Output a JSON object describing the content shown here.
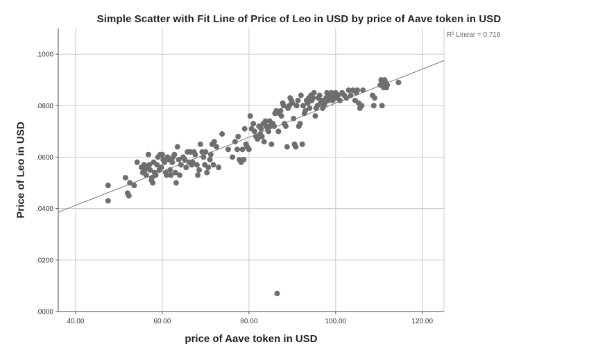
{
  "chart_data": {
    "type": "scatter",
    "title": "Simple Scatter with Fit Line of Price of Leo in USD by price of Aave token in USD",
    "xlabel": "price of Aave token in USD",
    "ylabel": "Price of Leo in USD",
    "xlim": [
      36,
      125
    ],
    "ylim": [
      0,
      0.11
    ],
    "x_ticks": [
      40,
      60,
      80,
      100,
      120
    ],
    "x_tick_labels": [
      "40.00",
      "60.00",
      "80.00",
      "100.00",
      "120.00"
    ],
    "y_ticks": [
      0,
      0.02,
      0.04,
      0.06,
      0.08,
      0.1
    ],
    "y_tick_labels": [
      ".0000",
      ".0200",
      ".0400",
      ".0600",
      ".0800",
      ".1000"
    ],
    "grid": true,
    "fit_line": {
      "label": "R² Linear = 0.716",
      "x": [
        36,
        125
      ],
      "y": [
        0.0386,
        0.0975
      ]
    },
    "marker_color": "#6e6e6e",
    "series": [
      {
        "points": [
          [
            47.5,
            0.049
          ],
          [
            47.5,
            0.043
          ],
          [
            51.5,
            0.052
          ],
          [
            52.0,
            0.046
          ],
          [
            52.3,
            0.045
          ],
          [
            52.5,
            0.05
          ],
          [
            53.5,
            0.049
          ],
          [
            54.2,
            0.058
          ],
          [
            55.2,
            0.056
          ],
          [
            55.5,
            0.054
          ],
          [
            55.8,
            0.057
          ],
          [
            56.0,
            0.055
          ],
          [
            56.3,
            0.053
          ],
          [
            56.5,
            0.056
          ],
          [
            56.8,
            0.061
          ],
          [
            57.0,
            0.057
          ],
          [
            57.2,
            0.055
          ],
          [
            57.5,
            0.051
          ],
          [
            57.6,
            0.052
          ],
          [
            57.8,
            0.05
          ],
          [
            58.0,
            0.058
          ],
          [
            58.2,
            0.054
          ],
          [
            58.5,
            0.053
          ],
          [
            58.8,
            0.057
          ],
          [
            59.0,
            0.06
          ],
          [
            59.3,
            0.055
          ],
          [
            59.5,
            0.061
          ],
          [
            59.8,
            0.056
          ],
          [
            60.0,
            0.061
          ],
          [
            60.2,
            0.059
          ],
          [
            60.5,
            0.058
          ],
          [
            60.8,
            0.054
          ],
          [
            61.0,
            0.053
          ],
          [
            61.2,
            0.06
          ],
          [
            61.5,
            0.059
          ],
          [
            61.8,
            0.055
          ],
          [
            62.0,
            0.053
          ],
          [
            62.3,
            0.058
          ],
          [
            62.5,
            0.06
          ],
          [
            62.8,
            0.061
          ],
          [
            63.0,
            0.054
          ],
          [
            63.2,
            0.05
          ],
          [
            63.5,
            0.064
          ],
          [
            63.8,
            0.059
          ],
          [
            64.0,
            0.053
          ],
          [
            64.3,
            0.057
          ],
          [
            64.8,
            0.06
          ],
          [
            65.2,
            0.059
          ],
          [
            65.5,
            0.056
          ],
          [
            65.8,
            0.062
          ],
          [
            66.2,
            0.058
          ],
          [
            66.5,
            0.062
          ],
          [
            66.8,
            0.057
          ],
          [
            67.0,
            0.058
          ],
          [
            67.3,
            0.062
          ],
          [
            67.6,
            0.061
          ],
          [
            68.0,
            0.057
          ],
          [
            68.2,
            0.053
          ],
          [
            68.5,
            0.055
          ],
          [
            68.8,
            0.065
          ],
          [
            69.2,
            0.062
          ],
          [
            69.5,
            0.06
          ],
          [
            69.8,
            0.057
          ],
          [
            70.0,
            0.062
          ],
          [
            70.3,
            0.054
          ],
          [
            70.6,
            0.056
          ],
          [
            71.0,
            0.059
          ],
          [
            71.2,
            0.061
          ],
          [
            71.5,
            0.065
          ],
          [
            71.8,
            0.057
          ],
          [
            72.0,
            0.066
          ],
          [
            72.5,
            0.064
          ],
          [
            73.0,
            0.056
          ],
          [
            73.8,
            0.069
          ],
          [
            75.2,
            0.063
          ],
          [
            76.2,
            0.06
          ],
          [
            76.8,
            0.066
          ],
          [
            77.3,
            0.063
          ],
          [
            77.5,
            0.068
          ],
          [
            77.8,
            0.059
          ],
          [
            78.2,
            0.058
          ],
          [
            78.5,
            0.063
          ],
          [
            78.8,
            0.059
          ],
          [
            79.0,
            0.071
          ],
          [
            79.3,
            0.065
          ],
          [
            79.6,
            0.064
          ],
          [
            80.0,
            0.063
          ],
          [
            80.3,
            0.076
          ],
          [
            80.6,
            0.071
          ],
          [
            81.0,
            0.073
          ],
          [
            81.3,
            0.07
          ],
          [
            81.6,
            0.068
          ],
          [
            82.0,
            0.067
          ],
          [
            82.3,
            0.072
          ],
          [
            82.6,
            0.069
          ],
          [
            82.8,
            0.071
          ],
          [
            83.0,
            0.068
          ],
          [
            83.3,
            0.073
          ],
          [
            83.5,
            0.066
          ],
          [
            83.8,
            0.074
          ],
          [
            84.0,
            0.072
          ],
          [
            84.3,
            0.071
          ],
          [
            84.5,
            0.07
          ],
          [
            84.8,
            0.074
          ],
          [
            85.0,
            0.072
          ],
          [
            85.2,
            0.065
          ],
          [
            85.5,
            0.073
          ],
          [
            85.8,
            0.072
          ],
          [
            86.0,
            0.077
          ],
          [
            86.3,
            0.078
          ],
          [
            86.5,
            0.007
          ],
          [
            86.8,
            0.07
          ],
          [
            87.0,
            0.077
          ],
          [
            87.3,
            0.078
          ],
          [
            87.5,
            0.076
          ],
          [
            87.8,
            0.081
          ],
          [
            88.0,
            0.08
          ],
          [
            88.2,
            0.073
          ],
          [
            88.5,
            0.072
          ],
          [
            88.8,
            0.064
          ],
          [
            89.0,
            0.079
          ],
          [
            89.3,
            0.08
          ],
          [
            89.5,
            0.083
          ],
          [
            89.8,
            0.082
          ],
          [
            90.0,
            0.081
          ],
          [
            90.3,
            0.075
          ],
          [
            90.5,
            0.065
          ],
          [
            90.8,
            0.064
          ],
          [
            91.0,
            0.08
          ],
          [
            91.3,
            0.082
          ],
          [
            91.5,
            0.072
          ],
          [
            91.8,
            0.073
          ],
          [
            92.0,
            0.084
          ],
          [
            92.3,
            0.065
          ],
          [
            92.5,
            0.08
          ],
          [
            92.8,
            0.077
          ],
          [
            93.0,
            0.078
          ],
          [
            93.3,
            0.082
          ],
          [
            93.6,
            0.081
          ],
          [
            93.8,
            0.083
          ],
          [
            94.0,
            0.079
          ],
          [
            94.3,
            0.084
          ],
          [
            94.5,
            0.082
          ],
          [
            94.8,
            0.083
          ],
          [
            95.0,
            0.085
          ],
          [
            95.3,
            0.076
          ],
          [
            95.5,
            0.079
          ],
          [
            95.8,
            0.08
          ],
          [
            96.0,
            0.083
          ],
          [
            96.3,
            0.084
          ],
          [
            96.5,
            0.081
          ],
          [
            96.8,
            0.082
          ],
          [
            97.0,
            0.079
          ],
          [
            97.3,
            0.08
          ],
          [
            97.5,
            0.081
          ],
          [
            97.8,
            0.083
          ],
          [
            98.0,
            0.085
          ],
          [
            98.3,
            0.082
          ],
          [
            98.5,
            0.084
          ],
          [
            98.8,
            0.083
          ],
          [
            99.0,
            0.085
          ],
          [
            99.3,
            0.082
          ],
          [
            99.6,
            0.084
          ],
          [
            100.0,
            0.085
          ],
          [
            100.3,
            0.083
          ],
          [
            100.6,
            0.084
          ],
          [
            101.0,
            0.082
          ],
          [
            101.5,
            0.085
          ],
          [
            102.0,
            0.084
          ],
          [
            102.5,
            0.083
          ],
          [
            103.0,
            0.086
          ],
          [
            103.5,
            0.084
          ],
          [
            104.0,
            0.086
          ],
          [
            104.5,
            0.082
          ],
          [
            104.8,
            0.085
          ],
          [
            105.0,
            0.086
          ],
          [
            105.3,
            0.081
          ],
          [
            105.6,
            0.079
          ],
          [
            106.0,
            0.08
          ],
          [
            106.3,
            0.086
          ],
          [
            108.5,
            0.084
          ],
          [
            108.8,
            0.08
          ],
          [
            109.0,
            0.083
          ],
          [
            110.3,
            0.088
          ],
          [
            110.5,
            0.09
          ],
          [
            110.7,
            0.08
          ],
          [
            110.9,
            0.088
          ],
          [
            111.1,
            0.087
          ],
          [
            111.3,
            0.09
          ],
          [
            111.5,
            0.089
          ],
          [
            111.7,
            0.087
          ],
          [
            111.9,
            0.088
          ],
          [
            114.5,
            0.089
          ]
        ]
      }
    ]
  }
}
